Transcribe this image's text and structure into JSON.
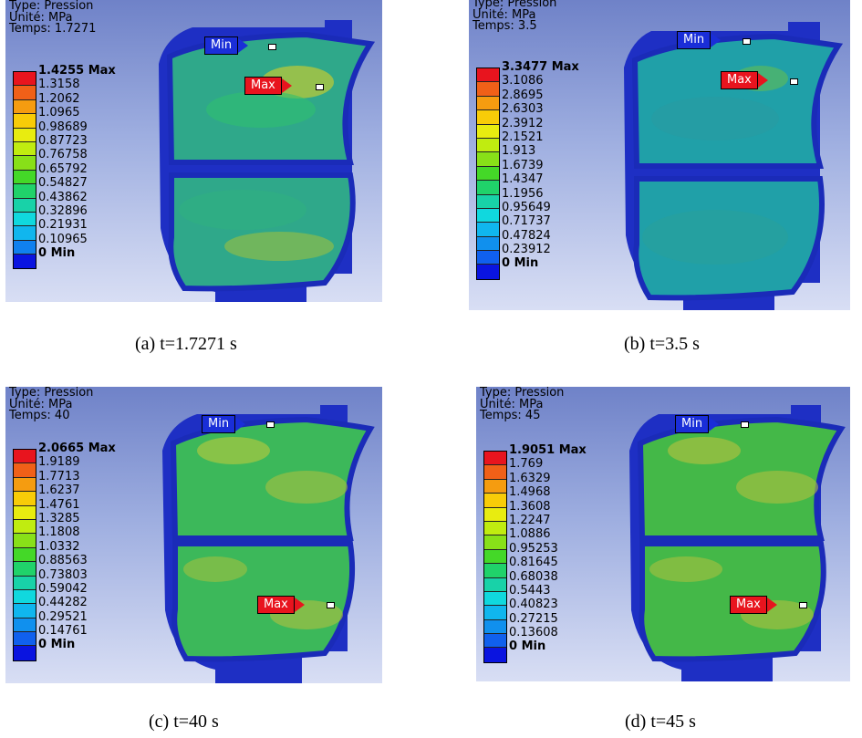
{
  "legend_colors": [
    "#e8141e",
    "#f06018",
    "#f59c10",
    "#f8cc08",
    "#e8ec10",
    "#c0ec10",
    "#88e018",
    "#44d828",
    "#20d26a",
    "#18d2a8",
    "#10d8de",
    "#10b6ee",
    "#1080ee",
    "#1048ee",
    "#0a14e0"
  ],
  "panels": [
    {
      "header": {
        "type": "Type: Pression",
        "unit": "Unité: MPa",
        "time": "Temps: 1.7271"
      },
      "values": [
        "1.4255 Max",
        "1.3158",
        "1.2062",
        "1.0965",
        "0.98689",
        "0.87723",
        "0.76758",
        "0.65792",
        "0.54827",
        "0.43862",
        "0.32896",
        "0.21931",
        "0.10965",
        "0 Min"
      ],
      "min_tag": "Min",
      "max_tag": "Max",
      "caption": "(a) t=1.7271 s"
    },
    {
      "header": {
        "type": "Type: Pression",
        "unit": "Unité: MPa",
        "time": "Temps: 3.5"
      },
      "values": [
        "3.3477 Max",
        "3.1086",
        "2.8695",
        "2.6303",
        "2.3912",
        "2.1521",
        "1.913",
        "1.6739",
        "1.4347",
        "1.1956",
        "0.95649",
        "0.71737",
        "0.47824",
        "0.23912",
        "0 Min"
      ],
      "min_tag": "Min",
      "max_tag": "Max",
      "caption": "(b) t=3.5 s"
    },
    {
      "header": {
        "type": "Type: Pression",
        "unit": "Unité: MPa",
        "time": "Temps: 40"
      },
      "values": [
        "2.0665 Max",
        "1.9189",
        "1.7713",
        "1.6237",
        "1.4761",
        "1.3285",
        "1.1808",
        "1.0332",
        "0.88563",
        "0.73803",
        "0.59042",
        "0.44282",
        "0.29521",
        "0.14761",
        "0 Min"
      ],
      "min_tag": "Min",
      "max_tag": "Max",
      "caption": "(c) t=40 s"
    },
    {
      "header": {
        "type": "Type: Pression",
        "unit": "Unité: MPa",
        "time": "Temps: 45"
      },
      "values": [
        "1.9051 Max",
        "1.769",
        "1.6329",
        "1.4968",
        "1.3608",
        "1.2247",
        "1.0886",
        "0.95253",
        "0.81645",
        "0.68038",
        "0.5443",
        "0.40823",
        "0.27215",
        "0.13608",
        "0 Min"
      ],
      "min_tag": "Min",
      "max_tag": "Max",
      "caption": "(d) t=45 s"
    }
  ]
}
